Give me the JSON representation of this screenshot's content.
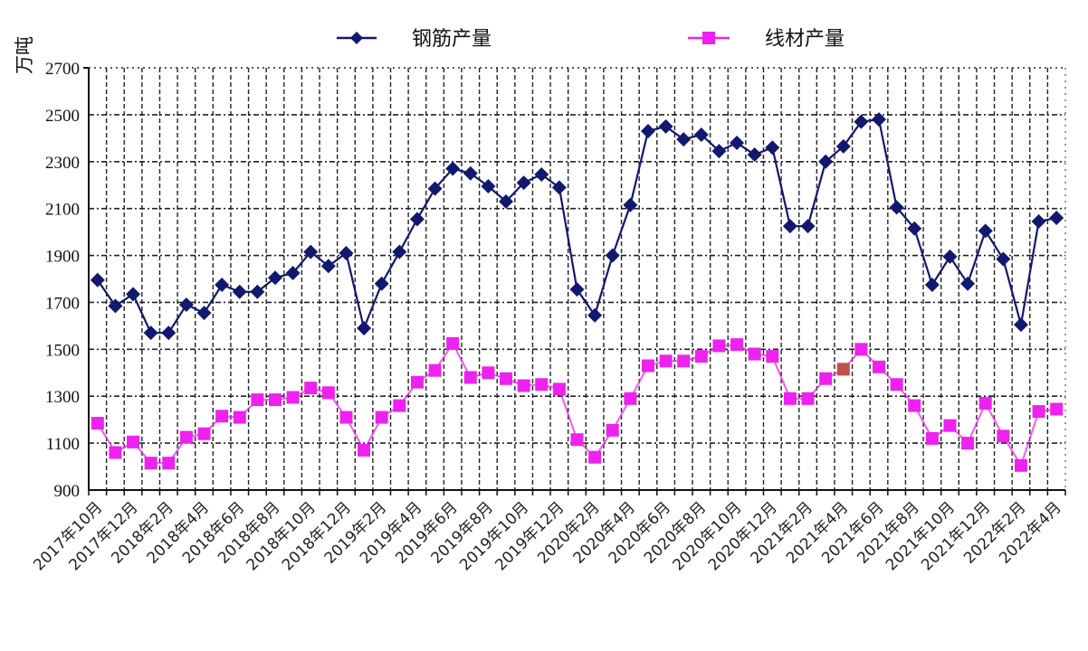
{
  "chart_data": {
    "type": "line",
    "title": "",
    "xlabel": "",
    "ylabel": "万吨",
    "ylim": [
      900,
      2700
    ],
    "yticks": [
      900,
      1100,
      1300,
      1500,
      1700,
      1900,
      2100,
      2300,
      2500,
      2700
    ],
    "grid": true,
    "legend_position": "top",
    "x": [
      "2017年10月",
      "2017年11月",
      "2017年12月",
      "2018年1月",
      "2018年2月",
      "2018年3月",
      "2018年4月",
      "2018年5月",
      "2018年6月",
      "2018年7月",
      "2018年8月",
      "2018年9月",
      "2018年10月",
      "2018年11月",
      "2018年12月",
      "2019年1月",
      "2019年2月",
      "2019年3月",
      "2019年4月",
      "2019年5月",
      "2019年6月",
      "2019年7月",
      "2019年8月",
      "2019年9月",
      "2019年10月",
      "2019年11月",
      "2019年12月",
      "2020年1月",
      "2020年2月",
      "2020年3月",
      "2020年4月",
      "2020年5月",
      "2020年6月",
      "2020年7月",
      "2020年8月",
      "2020年9月",
      "2020年10月",
      "2020年11月",
      "2020年12月",
      "2021年1月",
      "2021年2月",
      "2021年3月",
      "2021年4月",
      "2021年5月",
      "2021年6月",
      "2021年7月",
      "2021年8月",
      "2021年9月",
      "2021年10月",
      "2021年11月",
      "2021年12月",
      "2022年1月",
      "2022年2月",
      "2022年3月",
      "2022年4月"
    ],
    "xtick_labels": [
      "2017年10月",
      "2017年12月",
      "2018年2月",
      "2018年4月",
      "2018年6月",
      "2018年8月",
      "2018年10月",
      "2018年12月",
      "2019年2月",
      "2019年4月",
      "2019年6月",
      "2019年8月",
      "2019年10月",
      "2019年12月",
      "2020年2月",
      "2020年4月",
      "2020年6月",
      "2020年8月",
      "2020年10月",
      "2020年12月",
      "2021年2月",
      "2021年4月",
      "2021年6月",
      "2021年8月",
      "2021年10月",
      "2021年12月",
      "2022年2月",
      "2022年4月"
    ],
    "series": [
      {
        "name": "钢筋产量",
        "color": "#12186e",
        "marker": "diamond",
        "values": [
          1795,
          1685,
          1735,
          1570,
          1570,
          1690,
          1655,
          1775,
          1745,
          1745,
          1805,
          1825,
          1915,
          1855,
          1910,
          1590,
          1780,
          1915,
          2055,
          2185,
          2270,
          2250,
          2195,
          2130,
          2210,
          2245,
          2190,
          1755,
          1645,
          1900,
          2115,
          2430,
          2450,
          2395,
          2415,
          2345,
          2380,
          2330,
          2360,
          2025,
          2025,
          2300,
          2365,
          2470,
          2480,
          2105,
          2015,
          1775,
          1895,
          1780,
          2005,
          1885,
          1605,
          2045,
          2060
        ]
      },
      {
        "name": "线材产量",
        "color": "#ee22ee",
        "marker": "square",
        "values": [
          1185,
          1060,
          1105,
          1015,
          1015,
          1125,
          1140,
          1215,
          1210,
          1285,
          1285,
          1295,
          1335,
          1315,
          1210,
          1070,
          1210,
          1260,
          1360,
          1410,
          1525,
          1380,
          1400,
          1375,
          1345,
          1350,
          1330,
          1115,
          1040,
          1155,
          1290,
          1430,
          1450,
          1450,
          1470,
          1515,
          1520,
          1480,
          1470,
          1290,
          1290,
          1375,
          1415,
          1500,
          1425,
          1350,
          1260,
          1120,
          1175,
          1100,
          1270,
          1130,
          1005,
          1235,
          1245
        ],
        "highlight_index": 42,
        "highlight_color": "#c0504d"
      }
    ]
  },
  "legend": {
    "items": [
      {
        "label": "钢筋产量",
        "color": "#12186e",
        "marker": "diamond"
      },
      {
        "label": "线材产量",
        "color": "#ee22ee",
        "marker": "square"
      }
    ]
  },
  "axis": {
    "unit_label": "万吨"
  }
}
